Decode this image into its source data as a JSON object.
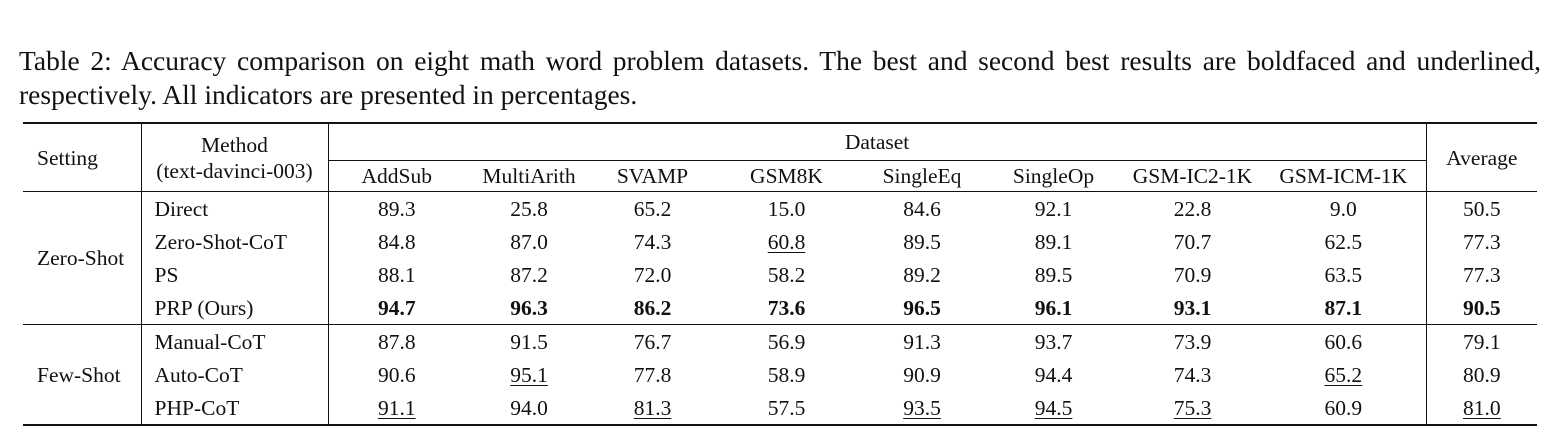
{
  "caption": "Table 2: Accuracy comparison on eight math word problem datasets. The best and second best results are boldfaced and underlined, respectively. All indicators are presented in percentages.",
  "header": {
    "setting": "Setting",
    "method_line1": "Method",
    "method_line2": "(text-davinci-003)",
    "dataset": "Dataset",
    "average": "Average",
    "datasets": [
      "AddSub",
      "MultiArith",
      "SVAMP",
      "GSM8K",
      "SingleEq",
      "SingleOp",
      "GSM-IC2-1K",
      "GSM-ICM-1K"
    ]
  },
  "groups": [
    {
      "setting": "Zero-Shot",
      "rows": [
        {
          "method": "Direct",
          "values": [
            "89.3",
            "25.8",
            "65.2",
            "15.0",
            "84.6",
            "92.1",
            "22.8",
            "9.0"
          ],
          "average": "50.5",
          "styles": [
            "",
            "",
            "",
            "",
            "",
            "",
            "",
            "",
            ""
          ]
        },
        {
          "method": "Zero-Shot-CoT",
          "values": [
            "84.8",
            "87.0",
            "74.3",
            "60.8",
            "89.5",
            "89.1",
            "70.7",
            "62.5"
          ],
          "average": "77.3",
          "styles": [
            "",
            "",
            "",
            "second",
            "",
            "",
            "",
            "",
            ""
          ]
        },
        {
          "method": "PS",
          "values": [
            "88.1",
            "87.2",
            "72.0",
            "58.2",
            "89.2",
            "89.5",
            "70.9",
            "63.5"
          ],
          "average": "77.3",
          "styles": [
            "",
            "",
            "",
            "",
            "",
            "",
            "",
            "",
            ""
          ]
        },
        {
          "method": "PRP (Ours)",
          "values": [
            "94.7",
            "96.3",
            "86.2",
            "73.6",
            "96.5",
            "96.1",
            "93.1",
            "87.1"
          ],
          "average": "90.5",
          "styles": [
            "best",
            "best",
            "best",
            "best",
            "best",
            "best",
            "best",
            "best",
            "best"
          ]
        }
      ]
    },
    {
      "setting": "Few-Shot",
      "rows": [
        {
          "method": "Manual-CoT",
          "values": [
            "87.8",
            "91.5",
            "76.7",
            "56.9",
            "91.3",
            "93.7",
            "73.9",
            "60.6"
          ],
          "average": "79.1",
          "styles": [
            "",
            "",
            "",
            "",
            "",
            "",
            "",
            "",
            ""
          ]
        },
        {
          "method": "Auto-CoT",
          "values": [
            "90.6",
            "95.1",
            "77.8",
            "58.9",
            "90.9",
            "94.4",
            "74.3",
            "65.2"
          ],
          "average": "80.9",
          "styles": [
            "",
            "second",
            "",
            "",
            "",
            "",
            "",
            "second",
            ""
          ]
        },
        {
          "method": "PHP-CoT",
          "values": [
            "91.1",
            "94.0",
            "81.3",
            "57.5",
            "93.5",
            "94.5",
            "75.3",
            "60.9"
          ],
          "average": "81.0",
          "styles": [
            "second",
            "",
            "second",
            "",
            "second",
            "second",
            "second",
            "",
            "second"
          ]
        }
      ]
    }
  ]
}
